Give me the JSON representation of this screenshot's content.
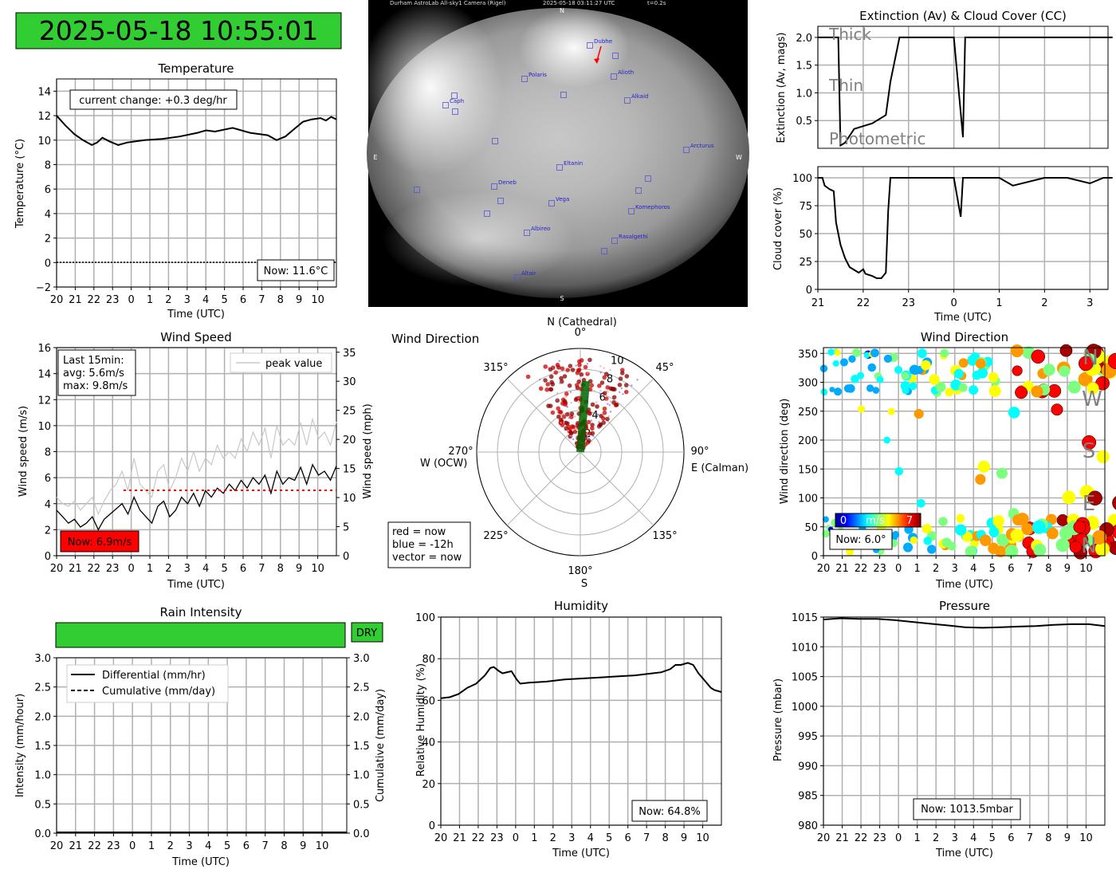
{
  "clock": {
    "text": "2025-05-18 10:55:01",
    "color": "#32cd32"
  },
  "colors": {
    "grid": "#b0b0b0",
    "now_red": "#ff0000",
    "dry_green": "#32cd32",
    "gray_text": "#808080"
  },
  "hours_axis": [
    "20",
    "21",
    "22",
    "23",
    "0",
    "1",
    "2",
    "3",
    "4",
    "5",
    "6",
    "7",
    "8",
    "9",
    "10"
  ],
  "sky_camera": {
    "header": "Durham AstroLab All-sky1 Camera (Rigel)",
    "timestamp": "2025-05-18 03:11:27 UTC",
    "exposure": "t=0.2s",
    "compass": {
      "n": "N",
      "s": "S",
      "e": "E",
      "w": "W"
    },
    "stars": [
      "Dubhe",
      "Polaris",
      "Alioth",
      "Alkaid",
      "Caph",
      "Arcturus",
      "Eltanin",
      "Deneb",
      "Vega",
      "Komephoros",
      "Albireo",
      "Rasalgethi",
      "Altair"
    ]
  },
  "chart_data": [
    {
      "id": "temperature",
      "type": "line",
      "title": "Temperature",
      "xlabel": "Time (UTC)",
      "ylabel": "Temperature (°C)",
      "ylim": [
        -2,
        15
      ],
      "yticks": [
        "−2",
        "0",
        "2",
        "4",
        "6",
        "8",
        "10",
        "12",
        "14"
      ],
      "annotation": "current change: +0.3 deg/hr",
      "now_label": "Now: 11.6°C",
      "x_hours": [
        20,
        20.5,
        21,
        21.5,
        22,
        22.3,
        22.6,
        23,
        23.5,
        24,
        24.5,
        25,
        26,
        27,
        28,
        28.5,
        29,
        30,
        31,
        32,
        32.5,
        33,
        33.5,
        34,
        34.5,
        35,
        35.3,
        35.6,
        35.9
      ],
      "values": [
        12.0,
        11.2,
        10.5,
        10.0,
        9.6,
        9.8,
        10.2,
        9.9,
        9.6,
        9.8,
        9.9,
        10.0,
        10.1,
        10.3,
        10.6,
        10.8,
        10.7,
        11.0,
        10.6,
        10.4,
        10.0,
        10.3,
        10.9,
        11.5,
        11.7,
        11.8,
        11.6,
        11.9,
        11.7
      ],
      "reference_line": 0,
      "grid": true
    },
    {
      "id": "extinction",
      "type": "line",
      "title": "Extinction (Av) & Cloud Cover (CC)",
      "ylabel": "Extinction (Av, mags)",
      "ylim": [
        0,
        2.2
      ],
      "yticks": [
        "0.5",
        "1.0",
        "1.5",
        "2.0"
      ],
      "bands": [
        "Thick",
        "Thin",
        "Photometric"
      ],
      "x_hours": [
        21,
        21.45,
        21.5,
        21.6,
        21.8,
        22,
        22.2,
        22.5,
        22.6,
        22.8,
        22.9,
        23,
        23.2,
        23.5,
        24,
        24.2,
        24.25,
        25,
        26,
        27,
        27.5
      ],
      "values": [
        2.0,
        2.0,
        0.05,
        0.1,
        0.35,
        0.4,
        0.45,
        0.6,
        1.2,
        2.0,
        2.0,
        2.0,
        2.0,
        2.0,
        2.0,
        0.2,
        2.0,
        2.0,
        2.0,
        2.0,
        2.0
      ],
      "grid": true
    },
    {
      "id": "cloud_cover",
      "type": "line",
      "xlabel": "Time (UTC)",
      "ylabel": "Cloud cover (%)",
      "ylim": [
        0,
        110
      ],
      "yticks": [
        "0",
        "25",
        "50",
        "75",
        "100"
      ],
      "xticks": [
        "21",
        "22",
        "23",
        "0",
        "1",
        "2",
        "3"
      ],
      "x_hours": [
        21,
        21.1,
        21.15,
        21.25,
        21.35,
        21.4,
        21.45,
        21.5,
        21.6,
        21.7,
        21.9,
        22.0,
        22.05,
        22.2,
        22.3,
        22.4,
        22.5,
        22.55,
        22.6,
        22.65,
        22.7,
        23,
        23.5,
        24,
        24.15,
        24.2,
        25,
        25.3,
        26,
        26.5,
        27,
        27.3,
        27.5
      ],
      "values": [
        100,
        100,
        93,
        90,
        88,
        60,
        50,
        40,
        28,
        20,
        15,
        18,
        14,
        12,
        10,
        10,
        15,
        70,
        100,
        100,
        100,
        100,
        100,
        100,
        65,
        100,
        100,
        93,
        100,
        100,
        95,
        100,
        100
      ],
      "grid": true
    },
    {
      "id": "wind_speed",
      "type": "line",
      "title": "Wind Speed",
      "xlabel": "Time (UTC)",
      "ylabel": "Wind speed (m/s)",
      "ylabel_right": "Wind speed (mph)",
      "ylim": [
        0,
        16
      ],
      "yticks": [
        "0",
        "2",
        "4",
        "6",
        "8",
        "10",
        "12",
        "14",
        "16"
      ],
      "yticks_right": [
        "0",
        "5",
        "10",
        "15",
        "20",
        "25",
        "30",
        "35"
      ],
      "legend": "peak value",
      "stats": [
        "Last 15min:",
        "avg: 5.6m/s",
        "max: 9.8m/s"
      ],
      "now_label": "Now: 6.9m/s",
      "threshold": 5,
      "avg_values": [
        3.5,
        3.0,
        2.5,
        2.8,
        2.2,
        2.5,
        3.0,
        2.0,
        2.8,
        3.2,
        3.6,
        4.0,
        3.2,
        4.5,
        3.5,
        3.0,
        2.5,
        3.8,
        4.2,
        3.0,
        3.5,
        4.5,
        4.0,
        4.8,
        3.8,
        5.0,
        4.5,
        5.2,
        4.8,
        5.5,
        5.0,
        5.8,
        5.2,
        6.0,
        5.5,
        6.2,
        4.8,
        6.5,
        5.5,
        6.0,
        5.8,
        6.8,
        5.5,
        7.0,
        6.2,
        6.5,
        5.8,
        6.9
      ],
      "peak_values": [
        4.5,
        4.0,
        3.8,
        4.2,
        3.5,
        4.0,
        4.5,
        3.2,
        4.2,
        5.0,
        5.5,
        6.5,
        5.0,
        7.5,
        5.5,
        5.0,
        4.5,
        6.5,
        7.0,
        5.0,
        6.0,
        7.5,
        6.5,
        8.0,
        6.5,
        7.5,
        7.0,
        8.5,
        7.5,
        8.0,
        7.5,
        9.0,
        8.0,
        9.5,
        8.5,
        9.8,
        7.5,
        10.0,
        8.5,
        9.0,
        8.5,
        10.2,
        8.5,
        10.5,
        9.0,
        9.5,
        8.5,
        10.3
      ]
    },
    {
      "id": "wind_polar",
      "type": "scatter",
      "title": "Wind Direction",
      "angle_labels": [
        "0°",
        "45°",
        "90°",
        "135°",
        "180°",
        "225°",
        "270°",
        "315°"
      ],
      "cardinals": [
        "N (Cathedral)",
        "E (Calman)",
        "S",
        "W (OCW)"
      ],
      "radial_ticks": [
        "2",
        "4",
        "6",
        "8",
        "10"
      ],
      "legend": [
        "red = now",
        "blue = -12h",
        "vector = now"
      ],
      "vector": {
        "direction_deg": 6,
        "speed": 6.0
      }
    },
    {
      "id": "wind_direction",
      "type": "scatter",
      "title": "Wind Direction",
      "xlabel": "Time (UTC)",
      "ylabel": "Wind direction (deg)",
      "ylim": [
        0,
        360
      ],
      "yticks": [
        "0",
        "50",
        "100",
        "150",
        "200",
        "250",
        "300",
        "350"
      ],
      "compass_labels": [
        "N",
        "W",
        "S",
        "E",
        "N"
      ],
      "colorbar": {
        "min": "0",
        "label": "m/s",
        "max": "7"
      },
      "now_label": "Now: 6.0°"
    },
    {
      "id": "rain",
      "type": "line",
      "title": "Rain Intensity",
      "xlabel": "Time (UTC)",
      "ylabel": "Intensity (mm/hour)",
      "ylabel_right": "Cumulative (mm/day)",
      "ylim": [
        0,
        3.0
      ],
      "yticks": [
        "0.0",
        "0.5",
        "1.0",
        "1.5",
        "2.0",
        "2.5",
        "3.0"
      ],
      "legend": [
        "Differential (mm/hr)",
        "Cumulative (mm/day)"
      ],
      "status": "DRY",
      "values": [
        0,
        0
      ],
      "x_hours": [
        20,
        35
      ]
    },
    {
      "id": "humidity",
      "type": "line",
      "title": "Humidity",
      "xlabel": "Time (UTC)",
      "ylabel": "Relative Humidity (%)",
      "ylim": [
        0,
        100
      ],
      "yticks": [
        "0",
        "20",
        "40",
        "60",
        "80",
        "100"
      ],
      "now_label": "Now: 64.8%",
      "x_hours": [
        20,
        20.5,
        21,
        21.5,
        22,
        22.5,
        22.8,
        23,
        23.3,
        23.5,
        24,
        24.3,
        24.5,
        25,
        26,
        27,
        28,
        29,
        30,
        31,
        32,
        32.5,
        33,
        33.3,
        33.6,
        34,
        34.3,
        34.6,
        35,
        35.3,
        35.5,
        35.9
      ],
      "values": [
        61,
        61.5,
        63,
        66,
        68,
        72,
        75.5,
        76,
        74,
        73,
        74,
        70,
        68,
        68.5,
        69,
        70,
        70.5,
        71,
        71.5,
        72,
        73,
        73.5,
        75,
        77,
        77,
        78,
        77,
        73,
        69,
        66,
        65,
        64
      ]
    },
    {
      "id": "pressure",
      "type": "line",
      "title": "Pressure",
      "xlabel": "Time (UTC)",
      "ylabel": "Pressure (mbar)",
      "ylim": [
        980,
        1015
      ],
      "yticks": [
        "980",
        "985",
        "990",
        "995",
        "1000",
        "1005",
        "1010",
        "1015"
      ],
      "now_label": "Now: 1013.5mbar",
      "x_hours": [
        20,
        21,
        22,
        23,
        24,
        25,
        26,
        27,
        28,
        29,
        30,
        31,
        32,
        33,
        34,
        35,
        35.9
      ],
      "values": [
        1014.6,
        1014.8,
        1014.7,
        1014.7,
        1014.5,
        1014.2,
        1013.9,
        1013.6,
        1013.3,
        1013.2,
        1013.3,
        1013.4,
        1013.5,
        1013.7,
        1013.8,
        1013.8,
        1013.5
      ]
    }
  ]
}
